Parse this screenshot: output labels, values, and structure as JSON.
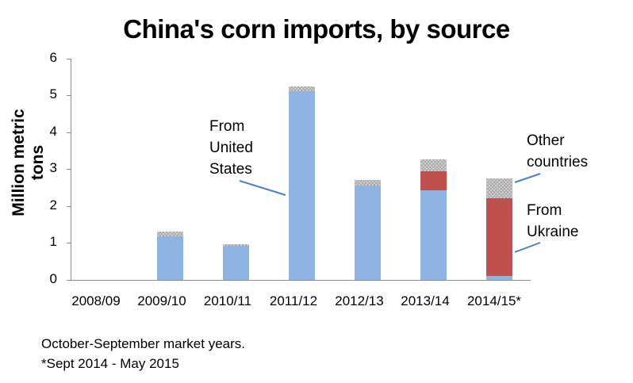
{
  "chart_data": {
    "type": "bar",
    "stacked": true,
    "title": "China's corn imports, by source",
    "xlabel": "",
    "ylabel": "Million metric tons",
    "ylim": [
      0,
      6
    ],
    "yticks": [
      "0",
      "1",
      "2",
      "3",
      "4",
      "5",
      "6"
    ],
    "grid": false,
    "legend": "inline annotations",
    "categories": [
      "2008/09",
      "2009/10",
      "2010/11",
      "2011/12",
      "2012/13",
      "2013/14",
      "2014/15*"
    ],
    "series": [
      {
        "name": "From United States",
        "color": "#8eb4e3",
        "values": [
          0,
          1.18,
          0.92,
          5.12,
          2.56,
          2.43,
          0.1
        ]
      },
      {
        "name": "From Ukraine",
        "color": "#c0504d",
        "values": [
          0,
          0,
          0,
          0,
          0,
          0.52,
          2.12
        ]
      },
      {
        "name": "Other countries",
        "color": "#bfbfbf",
        "pattern": "checkered",
        "values": [
          0,
          0.13,
          0.05,
          0.13,
          0.15,
          0.32,
          0.53
        ]
      }
    ],
    "annotations": [
      {
        "text": "From United States",
        "target": "2011/12 US bar"
      },
      {
        "text": "Other countries",
        "target": "2014/15* other segment"
      },
      {
        "text": "From Ukraine",
        "target": "2014/15* Ukraine segment"
      }
    ],
    "notes": [
      "October-September market years.",
      "*Sept 2014 - May 2015"
    ]
  },
  "labels": {
    "title": "China's corn imports, by source",
    "ylabel": "Million metric tons",
    "yticks": [
      "0",
      "1",
      "2",
      "3",
      "4",
      "5",
      "6"
    ],
    "xticks": [
      "2008/09",
      "2009/10",
      "2010/11",
      "2011/12",
      "2012/13",
      "2013/14",
      "2014/15*"
    ],
    "annot_us": [
      "From",
      "United",
      "States"
    ],
    "annot_other": [
      "Other",
      "countries"
    ],
    "annot_ukraine": [
      "From",
      "Ukraine"
    ],
    "note1": "October-September market years.",
    "note2": "*Sept 2014 - May 2015"
  }
}
